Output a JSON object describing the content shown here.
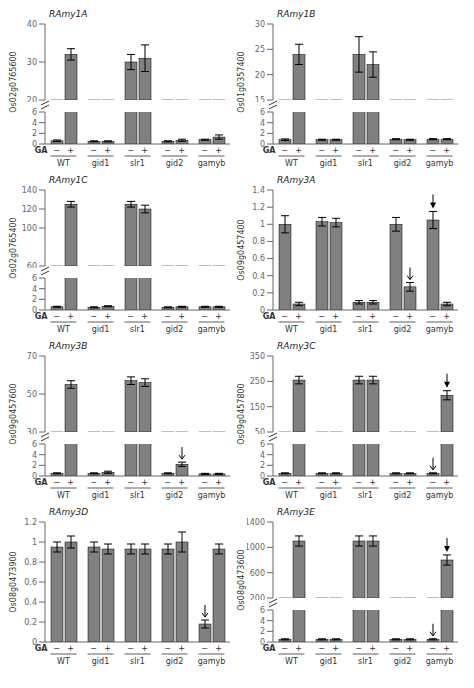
{
  "chart_data": [
    {
      "type": "bar",
      "title": "RAmy1A",
      "x_label": "GA",
      "y_label": "Os02g0765600",
      "categories": [
        "WT",
        "gid1",
        "slr1",
        "gid2",
        "gamyb"
      ],
      "series": [
        {
          "name": "−",
          "values": [
            0.6,
            0.5,
            30.0,
            0.5,
            0.8
          ],
          "errors": [
            0.15,
            0.1,
            2.0,
            0.1,
            0.1
          ]
        },
        {
          "name": "+",
          "values": [
            32.0,
            0.5,
            31.0,
            0.7,
            1.3
          ],
          "errors": [
            1.5,
            0.1,
            3.5,
            0.2,
            0.4
          ]
        }
      ],
      "color": "#808080",
      "ylim": [
        0,
        40
      ],
      "yticks": [
        0,
        2,
        4,
        6,
        20,
        30,
        40
      ],
      "y_break": [
        6,
        20
      ],
      "annotations": []
    },
    {
      "type": "bar",
      "title": "RAmy1B",
      "x_label": "GA",
      "y_label": "Os01g0357400",
      "categories": [
        "WT",
        "gid1",
        "slr1",
        "gid2",
        "gamyb"
      ],
      "series": [
        {
          "name": "−",
          "values": [
            0.8,
            0.8,
            24.0,
            0.9,
            0.9
          ],
          "errors": [
            0.15,
            0.1,
            3.5,
            0.1,
            0.1
          ]
        },
        {
          "name": "+",
          "values": [
            24.0,
            0.8,
            22.0,
            0.8,
            0.9
          ],
          "errors": [
            2.0,
            0.1,
            2.5,
            0.1,
            0.1
          ]
        }
      ],
      "color": "#808080",
      "ylim": [
        0,
        30
      ],
      "yticks": [
        0,
        2,
        4,
        6,
        15,
        20,
        25,
        30
      ],
      "y_break": [
        6,
        15
      ],
      "annotations": []
    },
    {
      "type": "bar",
      "title": "RAmy1C",
      "x_label": "GA",
      "y_label": "Os02g0765400",
      "categories": [
        "WT",
        "gid1",
        "slr1",
        "gid2",
        "gamyb"
      ],
      "series": [
        {
          "name": "−",
          "values": [
            0.6,
            0.5,
            125.0,
            0.5,
            0.6
          ],
          "errors": [
            0.1,
            0.1,
            3.0,
            0.1,
            0.1
          ]
        },
        {
          "name": "+",
          "values": [
            125.0,
            0.7,
            120.0,
            0.6,
            0.6
          ],
          "errors": [
            3.0,
            0.1,
            4.0,
            0.1,
            0.1
          ]
        }
      ],
      "color": "#808080",
      "ylim": [
        0,
        140
      ],
      "yticks": [
        0,
        2,
        4,
        6,
        60,
        100,
        120,
        140
      ],
      "y_break": [
        6,
        60
      ],
      "annotations": []
    },
    {
      "type": "bar",
      "title": "RAmy3A",
      "x_label": "GA",
      "y_label": "Os09g0457400",
      "categories": [
        "WT",
        "gid1",
        "slr1",
        "gid2",
        "gamyb"
      ],
      "series": [
        {
          "name": "−",
          "values": [
            1.0,
            1.03,
            0.09,
            1.0,
            1.05
          ],
          "errors": [
            0.1,
            0.05,
            0.02,
            0.08,
            0.1
          ]
        },
        {
          "name": "+",
          "values": [
            0.07,
            1.02,
            0.09,
            0.27,
            0.07
          ],
          "errors": [
            0.02,
            0.05,
            0.02,
            0.05,
            0.02
          ]
        }
      ],
      "color": "#808080",
      "ylim": [
        0,
        1.4
      ],
      "yticks": [
        0,
        0.2,
        0.4,
        0.6,
        0.8,
        1,
        1.2,
        1.4
      ],
      "annotations": [
        {
          "type": "arrow",
          "category": "gid2",
          "series": "+"
        },
        {
          "type": "arrowhead",
          "category": "gamyb",
          "series": "−"
        }
      ]
    },
    {
      "type": "bar",
      "title": "RAmy3B",
      "x_label": "GA",
      "y_label": "Os09g0457600",
      "categories": [
        "WT",
        "gid1",
        "slr1",
        "gid2",
        "gamyb"
      ],
      "series": [
        {
          "name": "−",
          "values": [
            0.5,
            0.5,
            57.0,
            0.5,
            0.4
          ],
          "errors": [
            0.1,
            0.1,
            2.0,
            0.1,
            0.1
          ]
        },
        {
          "name": "+",
          "values": [
            55.0,
            0.7,
            56.0,
            2.2,
            0.4
          ],
          "errors": [
            2.0,
            0.2,
            2.0,
            0.4,
            0.1
          ]
        }
      ],
      "color": "#808080",
      "ylim": [
        0,
        70
      ],
      "yticks": [
        0,
        2,
        4,
        6,
        30,
        50,
        70
      ],
      "y_break": [
        6,
        30
      ],
      "annotations": [
        {
          "type": "arrow",
          "category": "gid2",
          "series": "+"
        }
      ]
    },
    {
      "type": "bar",
      "title": "RAmy3C",
      "x_label": "GA",
      "y_label": "Os09g0457800",
      "categories": [
        "WT",
        "gid1",
        "slr1",
        "gid2",
        "gamyb"
      ],
      "series": [
        {
          "name": "−",
          "values": [
            0.5,
            0.5,
            255.0,
            0.5,
            0.5
          ],
          "errors": [
            0.1,
            0.1,
            15.0,
            0.1,
            0.1
          ]
        },
        {
          "name": "+",
          "values": [
            255.0,
            0.5,
            255.0,
            0.5,
            195.0
          ],
          "errors": [
            15.0,
            0.1,
            15.0,
            0.1,
            18.0
          ]
        }
      ],
      "color": "#808080",
      "ylim": [
        0,
        350
      ],
      "yticks": [
        0,
        2,
        4,
        6,
        50,
        150,
        250,
        350
      ],
      "y_break": [
        6,
        50
      ],
      "annotations": [
        {
          "type": "arrow",
          "category": "gamyb",
          "series": "−"
        },
        {
          "type": "arrowhead",
          "category": "gamyb",
          "series": "+"
        }
      ]
    },
    {
      "type": "bar",
      "title": "RAmy3D",
      "x_label": "GA",
      "y_label": "Os08g0473900",
      "categories": [
        "WT",
        "gid1",
        "slr1",
        "gid2",
        "gamyb"
      ],
      "series": [
        {
          "name": "−",
          "values": [
            0.95,
            0.95,
            0.93,
            0.93,
            0.18
          ],
          "errors": [
            0.05,
            0.05,
            0.05,
            0.05,
            0.04
          ]
        },
        {
          "name": "+",
          "values": [
            1.0,
            0.93,
            0.93,
            1.0,
            0.93
          ],
          "errors": [
            0.06,
            0.05,
            0.05,
            0.1,
            0.05
          ]
        }
      ],
      "color": "#808080",
      "ylim": [
        0,
        1.2
      ],
      "yticks": [
        0,
        0.2,
        0.4,
        0.6,
        0.8,
        1,
        1.2
      ],
      "annotations": [
        {
          "type": "arrow",
          "category": "gamyb",
          "series": "−"
        }
      ]
    },
    {
      "type": "bar",
      "title": "RAmy3E",
      "x_label": "GA",
      "y_label": "Os08g0473600",
      "categories": [
        "WT",
        "gid1",
        "slr1",
        "gid2",
        "gamyb"
      ],
      "series": [
        {
          "name": "−",
          "values": [
            0.5,
            0.5,
            1100.0,
            0.5,
            0.5
          ],
          "errors": [
            0.1,
            0.1,
            80.0,
            0.1,
            0.1
          ]
        },
        {
          "name": "+",
          "values": [
            1100.0,
            0.5,
            1100.0,
            0.5,
            800.0
          ],
          "errors": [
            80.0,
            0.1,
            80.0,
            0.1,
            80.0
          ]
        }
      ],
      "color": "#808080",
      "ylim": [
        0,
        1400
      ],
      "yticks": [
        0,
        2,
        4,
        6,
        200,
        600,
        1000,
        1400
      ],
      "y_break": [
        6,
        200
      ],
      "annotations": [
        {
          "type": "arrow",
          "category": "gamyb",
          "series": "−"
        },
        {
          "type": "arrowhead",
          "category": "gamyb",
          "series": "+"
        }
      ]
    }
  ]
}
